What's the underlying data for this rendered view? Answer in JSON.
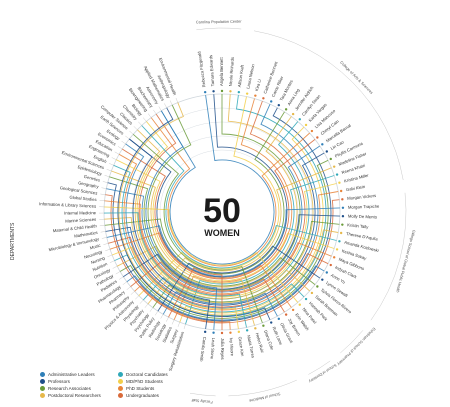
{
  "center": {
    "number": "50",
    "label": "WOMEN"
  },
  "left_title": "DEPARTMENTS",
  "colors": {
    "administrative": "#2f7fb8",
    "professor": "#1f4f8a",
    "research_associate": "#6a9b3a",
    "postdoctoral": "#e6b84a",
    "doctoral": "#2fa8b8",
    "md_phd": "#f2cf4a",
    "phd": "#e8843a",
    "undergraduate": "#d96a3a",
    "ring": "#cfd6dc"
  },
  "legend": [
    {
      "label": "Administrative Leaders",
      "color": "#2f7fb8"
    },
    {
      "label": "Professors",
      "color": "#1f4f8a"
    },
    {
      "label": "Research Associates",
      "color": "#6a9b3a"
    },
    {
      "label": "Postdoctoral Researchers",
      "color": "#e6b84a"
    },
    {
      "label": "Doctoral Candidates",
      "color": "#2fa8b8"
    },
    {
      "label": "MD/PhD Students",
      "color": "#f2cf4a"
    },
    {
      "label": "PhD Students",
      "color": "#e8843a"
    },
    {
      "label": "Undergraduates",
      "color": "#d96a3a"
    }
  ],
  "departments": [
    "Environmental Health",
    "Anthropology",
    "Applied Mathematics",
    "Astronomy",
    "Biochemistry",
    "Bioengineering",
    "Biology",
    "Chemistry",
    "Classics",
    "Computer Science",
    "Earth Sciences",
    "Ecology",
    "Economics",
    "Education",
    "Engineering",
    "English",
    "Environmental Sciences",
    "Epidemiology",
    "Genetics",
    "Geography",
    "Geological Sciences",
    "Global Studies",
    "Information & Library Sciences",
    "Internal Medicine",
    "Marine Sciences",
    "Maternal & Child Health",
    "Mathematics",
    "Microbiology & Immunology",
    "Music",
    "Neurology",
    "Nursing",
    "Nutrition",
    "Oncology",
    "Pathology",
    "Pediatrics",
    "Pharmacology",
    "Pharmacy",
    "Philosophy",
    "Physics & Astronomy",
    "Physiology",
    "Psychiatry",
    "Psychology",
    "Public Policy",
    "Radiology",
    "Sociology",
    "Statistics",
    "Surgery",
    "Surgery Rehabilitation"
  ],
  "women": [
    "Rebecca Fitzgerald",
    "Tamara Edwards",
    "Angela Bennett",
    "Nicole Richards",
    "Allison Kraft",
    "Laura Nelson",
    "Kira Li",
    "Catherine Bennett",
    "Carrie Riker",
    "Tara Montes",
    "Anna Ling",
    "Jennifer Aldrich",
    "Carolyn Swan",
    "Karla Vargas",
    "Lisa Mancuso",
    "Cheryl Cain",
    "Marcella Bernal",
    "Lin Cao",
    "Phyllis Carmona",
    "Madeline Fisher",
    "Reena Khatri",
    "Kristina Miller",
    "Gabi Klein",
    "Morgan Vickers",
    "Morgan Trapiche",
    "Molly De Mento",
    "Kristin Tally",
    "Therese D'Aquila",
    "Amanda Kozlowski",
    "Keshia Sokay",
    "Maya Gibbons",
    "Indyah Clark",
    "Anne Yu",
    "Lynne Sewall",
    "Sylvia Flores-Rivero",
    "Sarah Bowman",
    "Hannah Park",
    "Nina Patel",
    "Erin Walsh",
    "Joy Brown",
    "Olivia Grant",
    "Ruth Lane",
    "Diana Cole",
    "Helen Ruiz",
    "Maria Torres",
    "Grace Kim",
    "Ivy Moore",
    "Julia Reyes",
    "Leah Stone",
    "Camila Smith"
  ],
  "groups": [
    {
      "label": "Carolina Population Center"
    },
    {
      "label": "College of Arts & Sciences"
    },
    {
      "label": "Gillings School of Global Public Health"
    },
    {
      "label": "Eshelman School of Pharmacy"
    },
    {
      "label": "School of Dentistry"
    },
    {
      "label": "School of Medicine"
    },
    {
      "label": "Faculty Staff"
    }
  ]
}
